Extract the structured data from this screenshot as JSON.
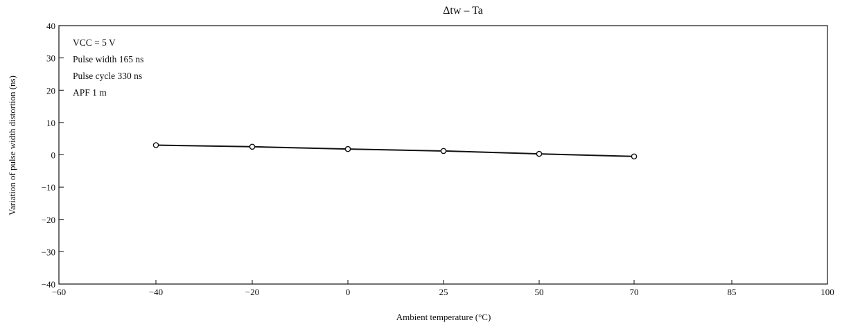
{
  "chart_data": {
    "type": "line",
    "title": "Δtw – Ta",
    "xlabel": "Ambient temperature (°C)",
    "ylabel": "Variation of pulse width distortion (ns)",
    "x_ticks": [
      -60,
      -40,
      -20,
      0,
      25,
      50,
      70,
      85,
      100
    ],
    "y_ticks": [
      40,
      30,
      20,
      10,
      0,
      -10,
      -20,
      -30,
      -40
    ],
    "x_tick_labels": [
      "−60",
      "−40",
      "−20",
      "0",
      "25",
      "50",
      "70",
      "85",
      "100"
    ],
    "y_tick_labels": [
      "40",
      "30",
      "20",
      "10",
      "0",
      "−10",
      "−20",
      "−30",
      "−40"
    ],
    "ylim": [
      -40,
      40
    ],
    "grid": false,
    "annotations": [
      "VCC = 5 V",
      "Pulse width 165 ns",
      "Pulse cycle 330 ns",
      "APF 1 m"
    ],
    "series": [
      {
        "x": [
          -40,
          -20,
          0,
          25,
          50,
          70
        ],
        "y": [
          3.0,
          2.5,
          1.8,
          1.2,
          0.3,
          -0.5
        ],
        "color": "#111111",
        "marker": "open-circle"
      }
    ]
  }
}
